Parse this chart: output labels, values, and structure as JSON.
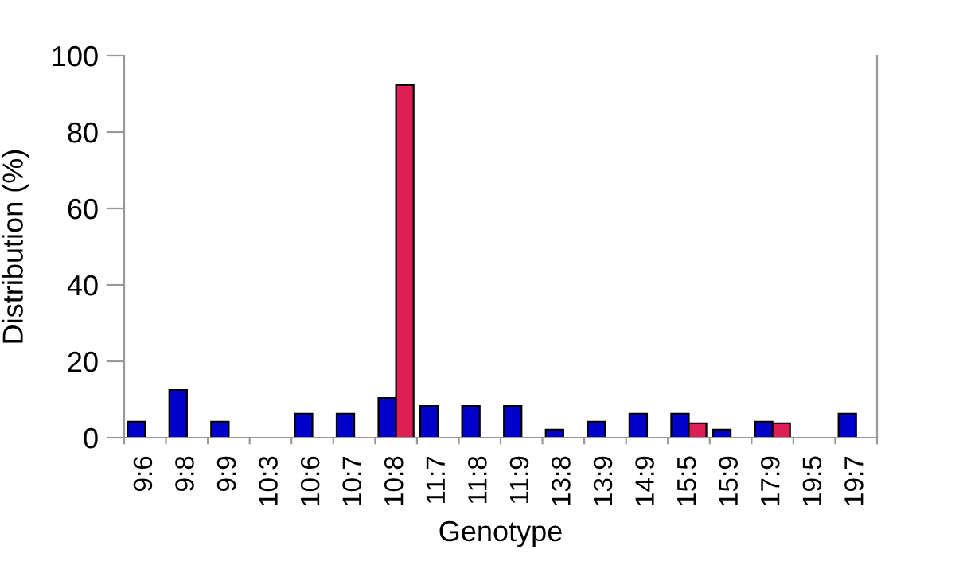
{
  "chart_data": {
    "type": "bar",
    "xlabel": "Genotype",
    "ylabel": "Distribution (%)",
    "categories": [
      "9:6",
      "9:8",
      "9:9",
      "10:3",
      "10:6",
      "10:7",
      "10:8",
      "11:7",
      "11:8",
      "11:9",
      "13:8",
      "13:9",
      "14:9",
      "15:5",
      "15:9",
      "17:9",
      "19:5",
      "19:7"
    ],
    "series": [
      {
        "color": "#0000cc",
        "values": [
          4.2,
          12.5,
          4.2,
          0,
          6.3,
          6.3,
          10.4,
          8.3,
          8.3,
          8.3,
          2.1,
          4.2,
          6.3,
          6.3,
          2.1,
          4.2,
          0,
          6.3
        ]
      },
      {
        "color": "#dd1f55",
        "values": [
          0,
          0,
          0,
          0,
          0,
          0,
          92.3,
          0,
          0,
          0,
          0,
          0,
          0,
          3.8,
          0,
          3.8,
          0,
          0
        ]
      }
    ],
    "ylim": [
      0,
      100
    ],
    "yticks": [
      0,
      20,
      40,
      60,
      80,
      100
    ],
    "grid": false,
    "legend": false
  }
}
